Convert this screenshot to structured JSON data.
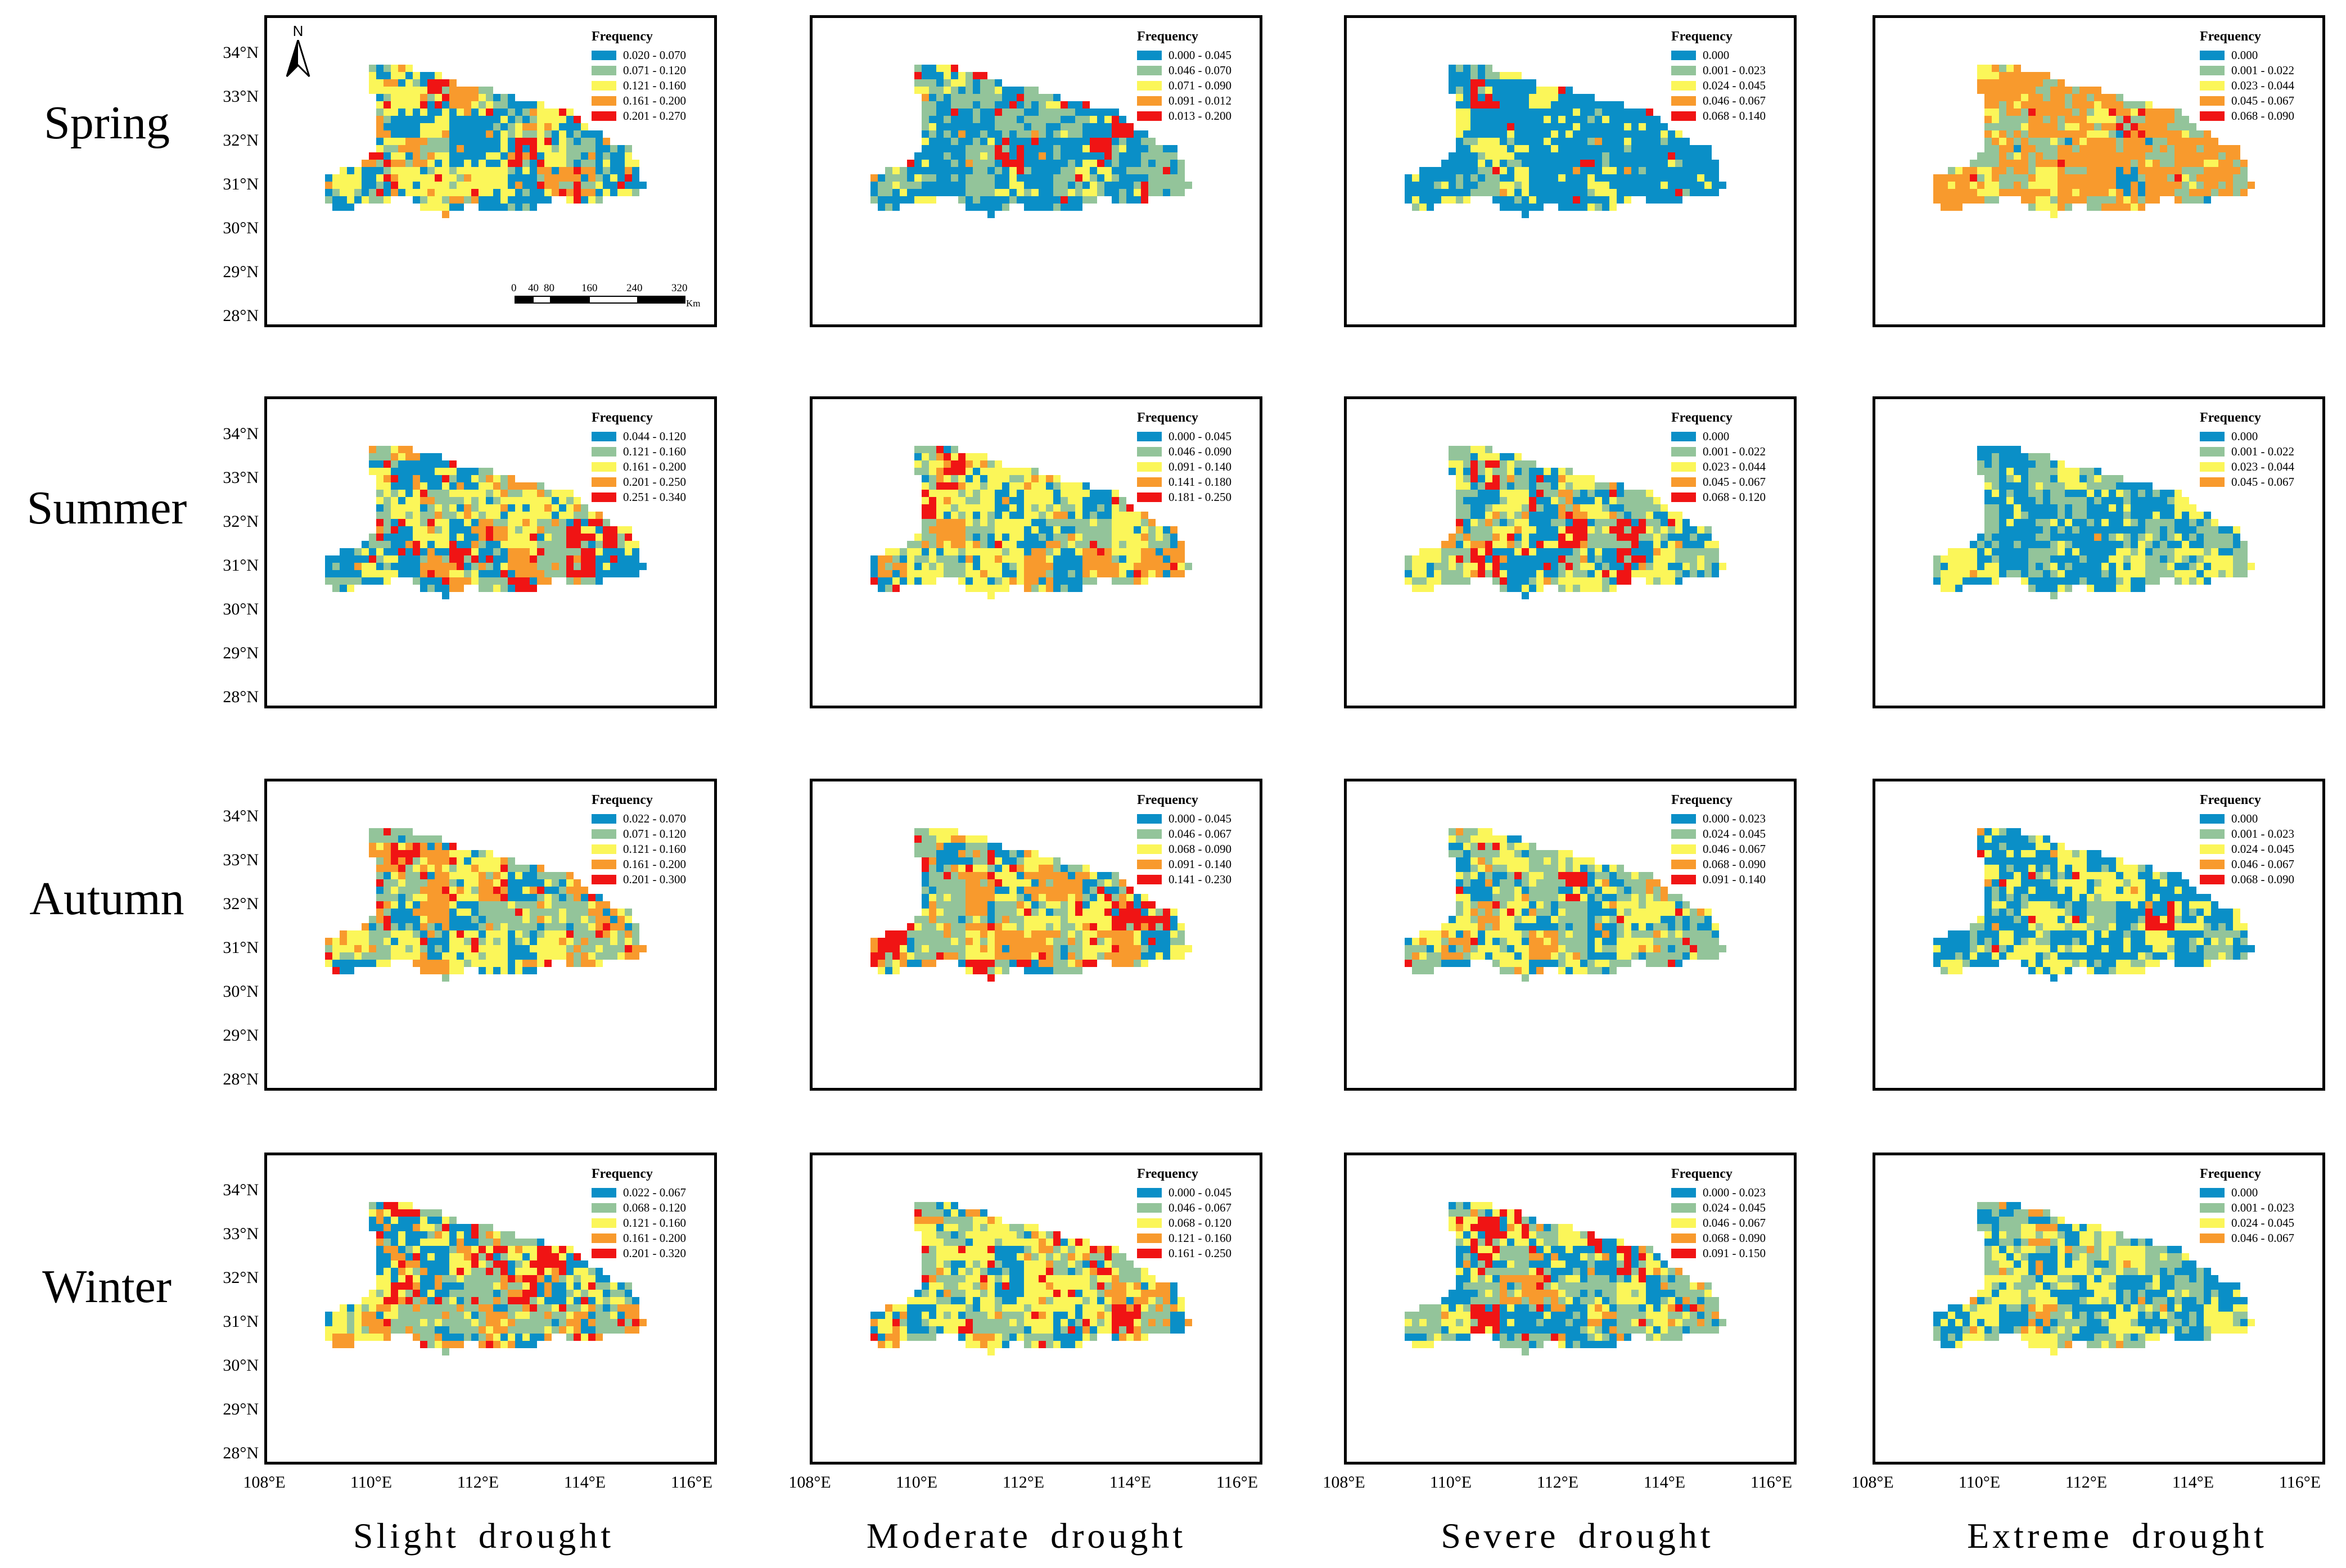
{
  "rows": [
    {
      "label": "Spring",
      "legend_title": "Frequency",
      "panels": [
        {
          "legend": [
            "0.020 - 0.070",
            "0.071 - 0.120",
            "0.121 - 0.160",
            "0.161 - 0.200",
            "0.201 - 0.270"
          ],
          "mix": [
            0.3,
            0.2,
            0.3,
            0.12,
            0.08
          ]
        },
        {
          "legend": [
            "0.000 - 0.045",
            "0.046 - 0.070",
            "0.071 - 0.090",
            "0.091 - 0.012",
            "0.013 - 0.200"
          ],
          "mix": [
            0.5,
            0.3,
            0.1,
            0.03,
            0.07
          ]
        },
        {
          "legend": [
            "0.000",
            "0.001 - 0.023",
            "0.024 - 0.045",
            "0.046 - 0.067",
            "0.068 - 0.140"
          ],
          "mix": [
            0.65,
            0.15,
            0.15,
            0.02,
            0.03
          ]
        },
        {
          "legend": [
            "0.000",
            "0.001 - 0.022",
            "0.023 - 0.044",
            "0.045 - 0.067",
            "0.068 - 0.090"
          ],
          "mix": [
            0.02,
            0.25,
            0.13,
            0.58,
            0.02
          ]
        }
      ]
    },
    {
      "label": "Summer",
      "legend_title": "Frequency",
      "panels": [
        {
          "legend": [
            "0.044 - 0.120",
            "0.121 - 0.160",
            "0.161 - 0.200",
            "0.201 - 0.250",
            "0.251 - 0.340"
          ],
          "mix": [
            0.28,
            0.2,
            0.22,
            0.18,
            0.12
          ]
        },
        {
          "legend": [
            "0.000 - 0.045",
            "0.046 - 0.090",
            "0.091 - 0.140",
            "0.141 - 0.180",
            "0.181 - 0.250"
          ],
          "mix": [
            0.2,
            0.25,
            0.35,
            0.15,
            0.05
          ]
        },
        {
          "legend": [
            "0.000",
            "0.001 - 0.022",
            "0.023 - 0.044",
            "0.045 - 0.067",
            "0.068 - 0.120"
          ],
          "mix": [
            0.25,
            0.3,
            0.3,
            0.08,
            0.07
          ]
        },
        {
          "legend": [
            "0.000",
            "0.001 - 0.022",
            "0.023 - 0.044",
            "0.045 - 0.067"
          ],
          "mix": [
            0.45,
            0.35,
            0.18,
            0.02
          ]
        }
      ]
    },
    {
      "label": "Autumn",
      "legend_title": "Frequency",
      "panels": [
        {
          "legend": [
            "0.022 - 0.070",
            "0.071 - 0.120",
            "0.121 - 0.160",
            "0.161 - 0.200",
            "0.201 - 0.300"
          ],
          "mix": [
            0.18,
            0.25,
            0.27,
            0.2,
            0.1
          ]
        },
        {
          "legend": [
            "0.000 - 0.045",
            "0.046 - 0.067",
            "0.068 - 0.090",
            "0.091 - 0.140",
            "0.141 - 0.230"
          ],
          "mix": [
            0.2,
            0.25,
            0.2,
            0.2,
            0.15
          ]
        },
        {
          "legend": [
            "0.000 - 0.023",
            "0.024 - 0.045",
            "0.046 - 0.067",
            "0.068 - 0.090",
            "0.091 - 0.140"
          ],
          "mix": [
            0.2,
            0.35,
            0.3,
            0.1,
            0.05
          ]
        },
        {
          "legend": [
            "0.000",
            "0.001 - 0.023",
            "0.024 - 0.045",
            "0.046 - 0.067",
            "0.068 - 0.090"
          ],
          "mix": [
            0.45,
            0.25,
            0.25,
            0.03,
            0.02
          ]
        }
      ]
    },
    {
      "label": "Winter",
      "legend_title": "Frequency",
      "panels": [
        {
          "legend": [
            "0.022 - 0.067",
            "0.068 - 0.120",
            "0.121 - 0.160",
            "0.161 - 0.200",
            "0.201 - 0.320"
          ],
          "mix": [
            0.2,
            0.25,
            0.25,
            0.18,
            0.12
          ]
        },
        {
          "legend": [
            "0.000 - 0.045",
            "0.046 - 0.067",
            "0.068 - 0.120",
            "0.121 - 0.160",
            "0.161 - 0.250"
          ],
          "mix": [
            0.22,
            0.2,
            0.33,
            0.15,
            0.1
          ]
        },
        {
          "legend": [
            "0.000 - 0.023",
            "0.024 - 0.045",
            "0.046 - 0.067",
            "0.068 - 0.090",
            "0.091 - 0.150"
          ],
          "mix": [
            0.3,
            0.3,
            0.2,
            0.12,
            0.08
          ]
        },
        {
          "legend": [
            "0.000",
            "0.001 - 0.023",
            "0.024 - 0.045",
            "0.046 - 0.067"
          ],
          "mix": [
            0.35,
            0.3,
            0.3,
            0.05
          ]
        }
      ]
    }
  ],
  "columns": [
    "Slight  drought",
    "Moderate  drought",
    "Severe  drought",
    "Extreme  drought"
  ],
  "y_ticks": [
    "34°N",
    "33°N",
    "32°N",
    "31°N",
    "30°N",
    "29°N",
    "28°N"
  ],
  "x_ticks": [
    "108°E",
    "110°E",
    "112°E",
    "114°E",
    "116°E"
  ],
  "north_label": "N",
  "scale": {
    "labels": [
      "0",
      "40",
      "80",
      "160",
      "240",
      "320"
    ],
    "unit": "Km"
  },
  "colors": [
    "#0a8fc7",
    "#93c49a",
    "#fbf659",
    "#f89a2d",
    "#f01414"
  ]
}
